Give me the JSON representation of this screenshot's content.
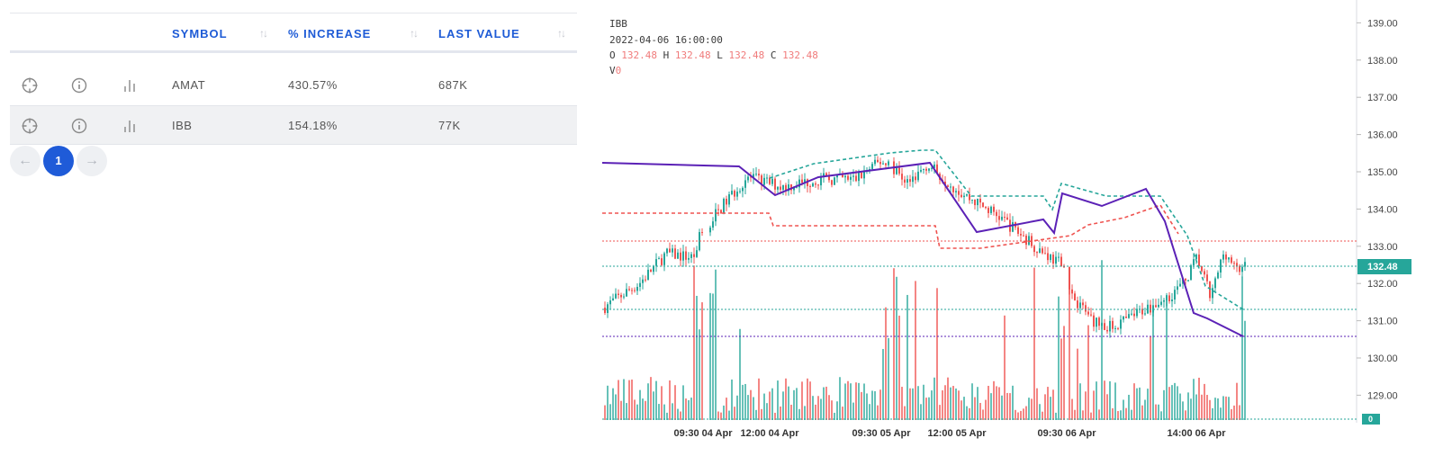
{
  "table": {
    "columns": {
      "symbol": "SYMBOL",
      "increase": "% INCREASE",
      "last": "LAST VALUE"
    },
    "rows": [
      {
        "symbol": "AMAT",
        "increase": "430.57%",
        "last": "687K"
      },
      {
        "symbol": "IBB",
        "increase": "154.18%",
        "last": "77K"
      }
    ],
    "pagination": {
      "prev": "←",
      "page": "1",
      "next": "→"
    }
  },
  "chart": {
    "symbol": "IBB",
    "datetime": "2022-04-06 16:00:00",
    "ohlc": {
      "o_label": "O",
      "o": "132.48",
      "h_label": "H",
      "h": "132.48",
      "l_label": "L",
      "l": "132.48",
      "c_label": "C",
      "c": "132.48"
    },
    "volume": {
      "label": "V",
      "value": "0"
    },
    "price_ticks": [
      "139.00",
      "138.00",
      "137.00",
      "136.00",
      "135.00",
      "134.00",
      "133.00",
      "132.00",
      "131.00",
      "130.00",
      "129.00"
    ],
    "current_price_label": "132.48",
    "volume_axis_label": "0",
    "time_labels": [
      "09:30 04 Apr",
      "12:00 04 Apr",
      "09:30 05 Apr",
      "12:00 05 Apr",
      "09:30 06 Apr",
      "14:00 06 Apr"
    ],
    "colors": {
      "up": "#26a69a",
      "down": "#ef5350",
      "trend": "#5b21b6",
      "accent": "#1f5bd8"
    }
  }
}
